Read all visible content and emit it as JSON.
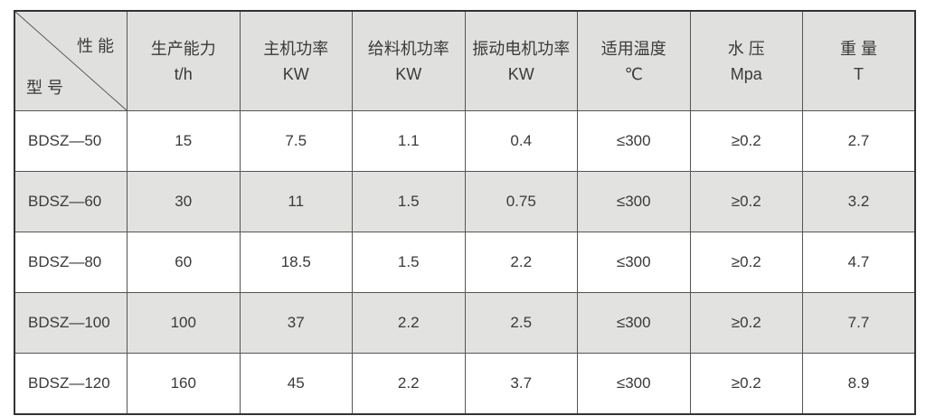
{
  "table": {
    "corner": {
      "top": "性 能",
      "bottom": "型 号"
    },
    "columns": [
      {
        "name": "生产能力",
        "unit": "t/h"
      },
      {
        "name": "主机功率",
        "unit": "KW"
      },
      {
        "name": "给料机功率",
        "unit": "KW"
      },
      {
        "name": "振动电机功率",
        "unit": "KW"
      },
      {
        "name": "适用温度",
        "unit": "℃"
      },
      {
        "name": "水 压",
        "unit": "Mpa"
      },
      {
        "name": "重 量",
        "unit": "T"
      }
    ],
    "rows": [
      [
        "BDSZ—50",
        "15",
        "7.5",
        "1.1",
        "0.4",
        "≤300",
        "≥0.2",
        "2.7"
      ],
      [
        "BDSZ—60",
        "30",
        "11",
        "1.5",
        "0.75",
        "≤300",
        "≥0.2",
        "3.2"
      ],
      [
        "BDSZ—80",
        "60",
        "18.5",
        "1.5",
        "2.2",
        "≤300",
        "≥0.2",
        "4.7"
      ],
      [
        "BDSZ—100",
        "100",
        "37",
        "2.2",
        "2.5",
        "≤300",
        "≥0.2",
        "7.7"
      ],
      [
        "BDSZ—120",
        "160",
        "45",
        "2.2",
        "3.7",
        "≤300",
        "≥0.2",
        "8.9"
      ]
    ]
  },
  "colors": {
    "header_bg": "#e0e0de",
    "alt_row_bg": "#e2e2e0",
    "border": "#555555"
  }
}
